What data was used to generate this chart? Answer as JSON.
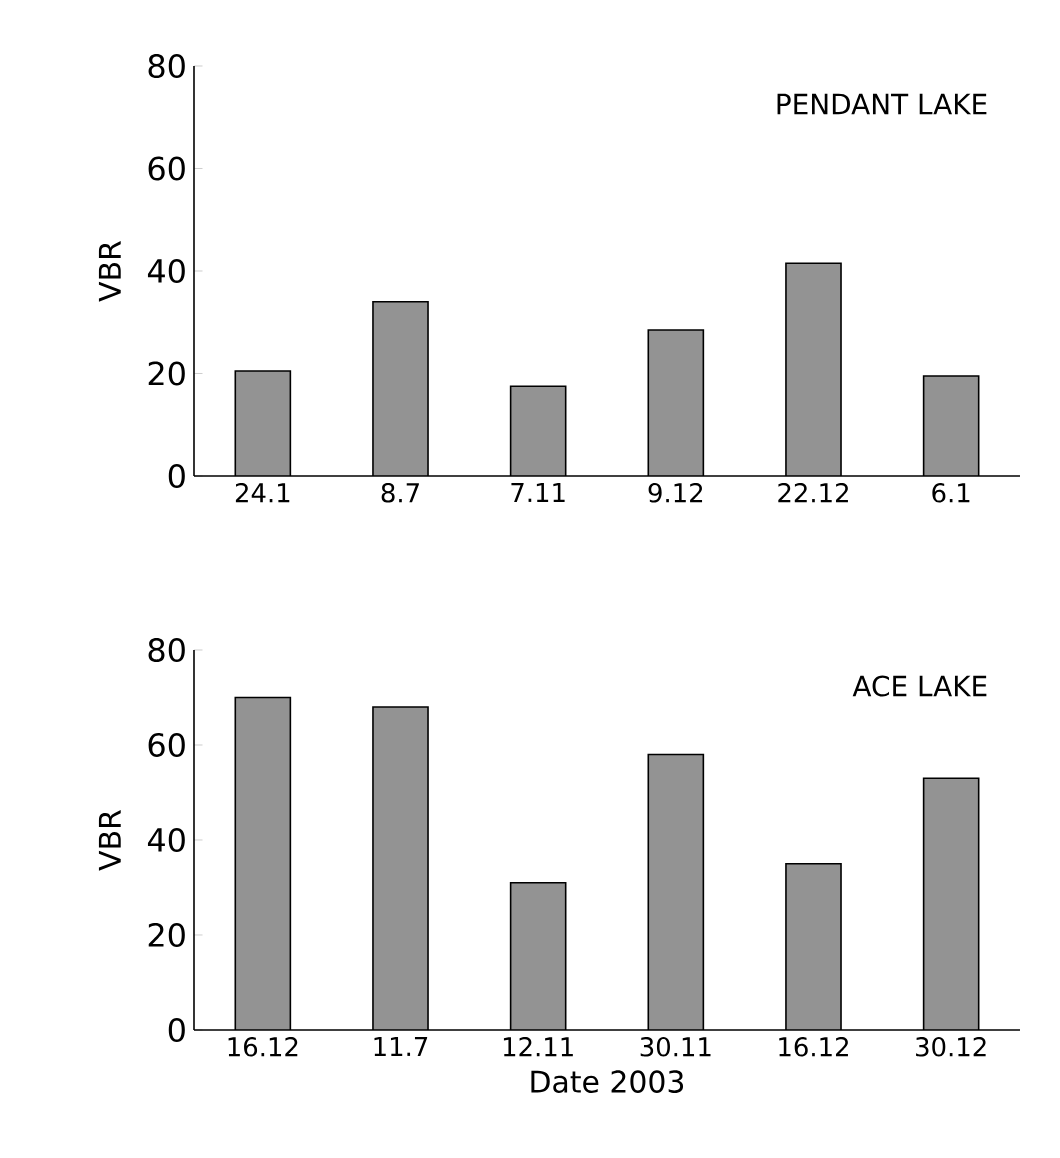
{
  "chart_data": [
    {
      "type": "bar",
      "title": "PENDANT LAKE",
      "ylabel": "VBR",
      "categories": [
        "24.1",
        "8.7",
        "7.11",
        "9.12",
        "22.12",
        "6.1"
      ],
      "values": [
        20.5,
        34,
        17.5,
        28.5,
        41.5,
        19.5
      ],
      "color": "#939393",
      "ylim": [
        0,
        80
      ],
      "yticks": [
        0,
        20,
        40,
        60,
        80
      ],
      "grid": false
    },
    {
      "type": "bar",
      "title": "ACE LAKE",
      "ylabel": "VBR",
      "xlabel": "Date 2003",
      "categories": [
        "16.12",
        "11.7",
        "12.11",
        "30.11",
        "16.12",
        "30.12"
      ],
      "values": [
        70,
        68,
        31,
        58,
        35,
        53
      ],
      "color": "#939393",
      "ylim": [
        0,
        80
      ],
      "yticks": [
        0,
        20,
        40,
        60,
        80
      ],
      "grid": false
    }
  ]
}
